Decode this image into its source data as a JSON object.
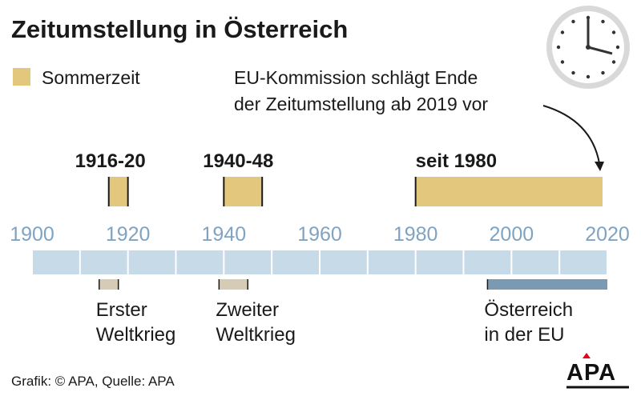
{
  "chart_data": {
    "type": "timeline",
    "title": "Zeitumstellung in Österreich",
    "legend": [
      {
        "label": "Sommerzeit",
        "color": "#E3C77C"
      }
    ],
    "axis": {
      "min": 1900,
      "max": 2020,
      "ticks": [
        "1900",
        "1920",
        "1940",
        "1960",
        "1980",
        "2000",
        "2020"
      ],
      "minor_step": 10
    },
    "sommerzeit_periods": [
      {
        "label": "1916-20",
        "start": 1916,
        "end": 1920
      },
      {
        "label": "1940-48",
        "start": 1940,
        "end": 1948
      },
      {
        "label": "seit 1980",
        "start": 1980,
        "end": 2019
      }
    ],
    "events": [
      {
        "label_lines": [
          "Erster",
          "Weltkrieg"
        ],
        "start": 1914,
        "end": 1918,
        "color": "#D6CBB4"
      },
      {
        "label_lines": [
          "Zweiter",
          "Weltkrieg"
        ],
        "start": 1939,
        "end": 1945,
        "color": "#D6CBB4"
      },
      {
        "label_lines": [
          "Österreich",
          "in der EU"
        ],
        "start": 1995,
        "end": 2020,
        "color": "#7A9AB3"
      }
    ],
    "annotation": {
      "lines": [
        "EU-Kommission schlägt Ende",
        "der Zeitumstellung ab 2019 vor"
      ],
      "target_year": 2019
    }
  },
  "footer": {
    "source": "Grafik: © APA, Quelle: APA",
    "logo_text": "APA"
  },
  "colors": {
    "summer": "#E3C77C",
    "axis_fill": "#C7DAE8",
    "tick_label": "#7FA3C2",
    "war": "#D6CBB4",
    "eu": "#7A9AB3"
  }
}
